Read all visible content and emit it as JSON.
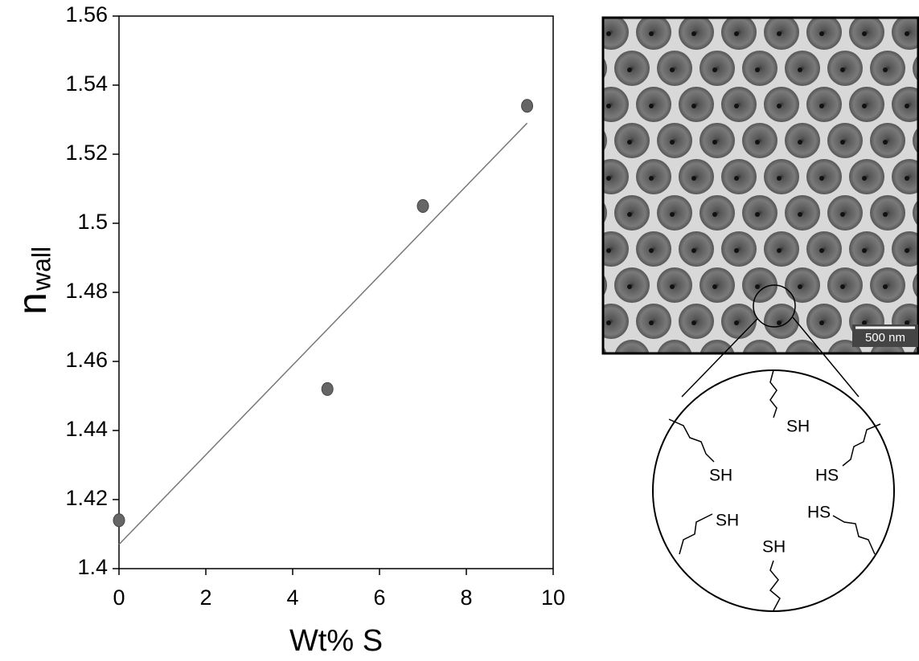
{
  "chart_data": {
    "type": "scatter",
    "x_label": "Wt% S",
    "y_label": {
      "main": "n",
      "sub": "wall"
    },
    "x": [
      0,
      4.8,
      7.0,
      9.4
    ],
    "values": [
      1.414,
      1.452,
      1.505,
      1.534
    ],
    "color": "#666666",
    "fit": {
      "x": [
        0,
        9.4
      ],
      "values": [
        1.407,
        1.529
      ],
      "color": "#777777"
    },
    "xlim": [
      0,
      10
    ],
    "xticks": [
      0,
      2,
      4,
      6,
      8,
      10
    ],
    "ylim": [
      1.4,
      1.56
    ],
    "yticks": [
      1.4,
      1.42,
      1.44,
      1.46,
      1.48,
      1.5,
      1.52,
      1.54,
      1.56
    ]
  },
  "inset": {
    "scale_bar": "500 nm",
    "labels": [
      "SH",
      "SH",
      "HS",
      "SH",
      "HS",
      "SH"
    ]
  }
}
